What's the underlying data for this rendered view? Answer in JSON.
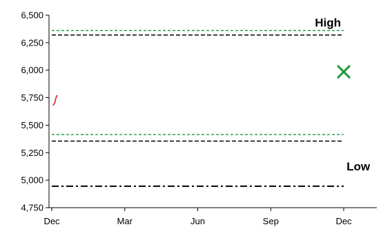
{
  "chart_data": {
    "type": "line",
    "title": "",
    "xlabel": "",
    "ylabel": "",
    "ylim": [
      4750,
      6500
    ],
    "yticks": [
      "4,750",
      "5,000",
      "5,250",
      "5,500",
      "5,750",
      "6,000",
      "6,250",
      "6,500"
    ],
    "ytick_values": [
      4750,
      5000,
      5250,
      5500,
      5750,
      6000,
      6250,
      6500
    ],
    "xlim": [
      0,
      12
    ],
    "xticks": [
      "Dec",
      "Mar",
      "Jun",
      "Sep",
      "Dec"
    ],
    "xtick_values": [
      0,
      3,
      6,
      9,
      12
    ],
    "grid": false,
    "reference_lines": [
      {
        "name": "high-green",
        "value": 6360,
        "color": "#1a9b3a",
        "style": "dashed"
      },
      {
        "name": "high-black",
        "value": 6320,
        "color": "#000000",
        "style": "dashed"
      },
      {
        "name": "mid-green",
        "value": 5415,
        "color": "#1a9b3a",
        "style": "dashed"
      },
      {
        "name": "mid-black",
        "value": 5355,
        "color": "#000000",
        "style": "dashed"
      },
      {
        "name": "low-black",
        "value": 4945,
        "color": "#000000",
        "style": "dashdot"
      }
    ],
    "price_series": {
      "color": "#e02020",
      "points": [
        [
          0.05,
          5680
        ],
        [
          0.12,
          5700
        ],
        [
          0.16,
          5740
        ],
        [
          0.2,
          5765
        ],
        [
          0.24,
          5770
        ]
      ]
    },
    "target_marker": {
      "x": 12,
      "y": 5985,
      "color": "#1a9b3a",
      "symbol": "x"
    },
    "annotations": [
      {
        "id": "high",
        "text": "High",
        "x": 11.35,
        "y": 6395
      },
      {
        "id": "low",
        "text": "Low",
        "x": 12.6,
        "y": 5090
      }
    ]
  }
}
